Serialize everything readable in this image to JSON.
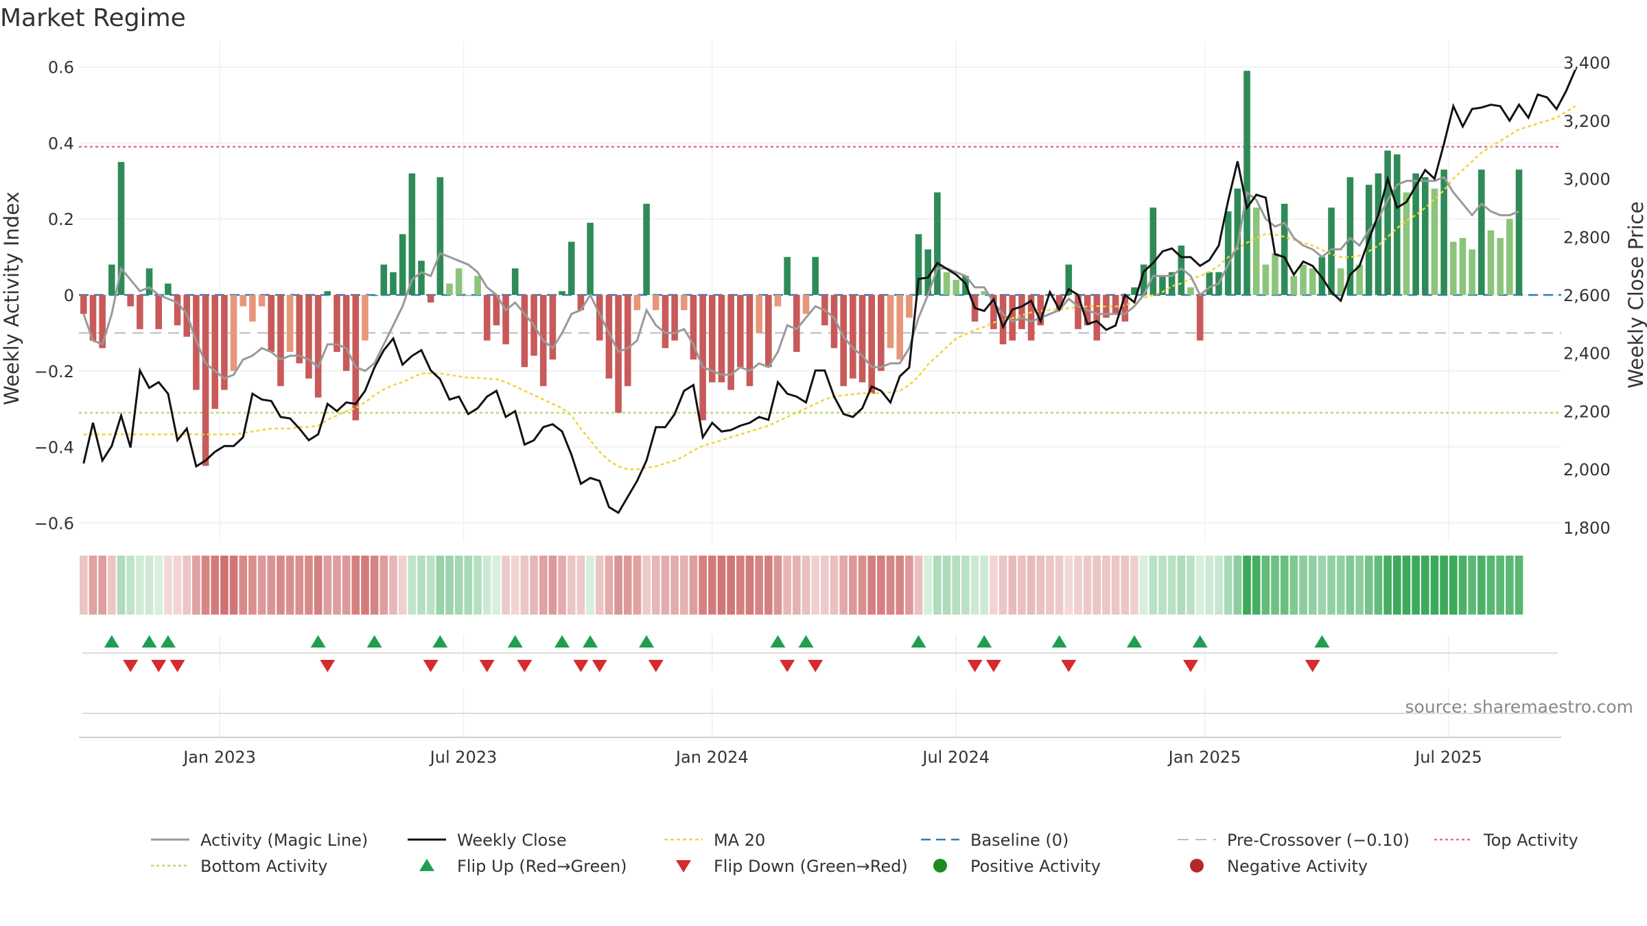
{
  "chart_data": {
    "type": "bar",
    "title": "Market Regime",
    "source": "source: sharemaestro.com",
    "ylabel_left": "Weekly Activity Index",
    "ylabel_right": "Weekly Close Price",
    "ylim_left": [
      -0.65,
      0.65
    ],
    "ylim_right": [
      1750,
      3450
    ],
    "yticks_left": [
      0.6,
      0.4,
      0.2,
      0,
      -0.2,
      -0.4,
      -0.6
    ],
    "ytick_labels_left": [
      "0.6",
      "0.4",
      "0.2",
      "0",
      "−0.2",
      "−0.4",
      "−0.6"
    ],
    "yticks_right": [
      3400,
      3200,
      3000,
      2800,
      2600,
      2400,
      2200,
      2000,
      1800
    ],
    "ytick_labels_right": [
      "3,400",
      "3,200",
      "3,000",
      "2,800",
      "2,600",
      "2,400",
      "2,200",
      "2,000",
      "1,800"
    ],
    "x_range": [
      0,
      158
    ],
    "xticks": [
      14.5,
      40.5,
      67,
      93,
      119.5,
      145.5
    ],
    "xtick_labels": [
      "Jan 2023",
      "Jul 2023",
      "Jan 2024",
      "Jul 2024",
      "Jan 2025",
      "Jul 2025"
    ],
    "activity_values": [
      -0.05,
      -0.12,
      -0.14,
      0.08,
      0.35,
      -0.03,
      -0.09,
      0.07,
      -0.09,
      0.03,
      -0.08,
      -0.11,
      -0.25,
      -0.45,
      -0.3,
      -0.25,
      -0.2,
      -0.03,
      -0.07,
      -0.03,
      -0.15,
      -0.24,
      -0.15,
      -0.18,
      -0.22,
      -0.27,
      0.01,
      -0.15,
      -0.2,
      -0.33,
      -0.12,
      0.0,
      0.08,
      0.06,
      0.16,
      0.32,
      0.09,
      -0.02,
      0.31,
      0.03,
      0.07,
      0.0,
      0.05,
      -0.12,
      -0.08,
      -0.13,
      0.07,
      -0.19,
      -0.16,
      -0.24,
      -0.17,
      0.01,
      0.14,
      -0.04,
      0.19,
      -0.12,
      -0.22,
      -0.31,
      -0.24,
      -0.04,
      0.24,
      -0.04,
      -0.14,
      -0.12,
      -0.04,
      -0.17,
      -0.33,
      -0.23,
      -0.23,
      -0.25,
      -0.19,
      -0.24,
      -0.1,
      -0.19,
      -0.03,
      0.1,
      -0.15,
      -0.05,
      0.1,
      -0.08,
      -0.14,
      -0.24,
      -0.22,
      -0.23,
      -0.26,
      -0.2,
      -0.14,
      -0.17,
      -0.06,
      0.16,
      0.12,
      0.27,
      0.06,
      0.04,
      0.05,
      -0.07,
      0.01,
      -0.09,
      -0.13,
      -0.12,
      -0.09,
      -0.12,
      -0.08,
      0.0,
      -0.04,
      0.08,
      -0.09,
      -0.08,
      -0.12,
      -0.06,
      -0.05,
      -0.07,
      0.02,
      0.08,
      0.23,
      0.05,
      0.06,
      0.13,
      0.02,
      -0.12,
      0.06,
      0.06,
      0.22,
      0.28,
      0.59,
      0.23,
      0.08,
      0.11,
      0.24,
      0.05,
      0.08,
      0.07,
      0.1,
      0.23,
      0.07,
      0.31,
      0.08,
      0.29,
      0.32,
      0.38,
      0.37,
      0.27,
      0.32,
      0.31,
      0.28,
      0.33,
      0.14,
      0.15,
      0.12,
      0.33,
      0.17,
      0.15,
      0.2,
      0.33
    ],
    "activity_magic_line": [
      -0.05,
      -0.12,
      -0.13,
      -0.05,
      0.07,
      0.04,
      0.01,
      0.02,
      0.0,
      -0.01,
      -0.02,
      -0.05,
      -0.12,
      -0.18,
      -0.2,
      -0.22,
      -0.21,
      -0.17,
      -0.16,
      -0.14,
      -0.15,
      -0.17,
      -0.16,
      -0.16,
      -0.17,
      -0.19,
      -0.13,
      -0.13,
      -0.14,
      -0.19,
      -0.2,
      -0.18,
      -0.13,
      -0.08,
      -0.03,
      0.04,
      0.06,
      0.05,
      0.11,
      0.1,
      0.09,
      0.08,
      0.06,
      0.02,
      0.0,
      -0.04,
      -0.02,
      -0.05,
      -0.08,
      -0.12,
      -0.14,
      -0.1,
      -0.05,
      -0.04,
      0.0,
      -0.05,
      -0.1,
      -0.15,
      -0.14,
      -0.12,
      -0.04,
      -0.08,
      -0.1,
      -0.1,
      -0.09,
      -0.13,
      -0.19,
      -0.2,
      -0.21,
      -0.21,
      -0.19,
      -0.2,
      -0.18,
      -0.19,
      -0.15,
      -0.08,
      -0.09,
      -0.06,
      -0.03,
      -0.04,
      -0.06,
      -0.11,
      -0.14,
      -0.16,
      -0.19,
      -0.19,
      -0.18,
      -0.18,
      -0.14,
      -0.06,
      0.0,
      0.07,
      0.07,
      0.06,
      0.05,
      0.02,
      0.02,
      -0.02,
      -0.05,
      -0.07,
      -0.06,
      -0.07,
      -0.06,
      -0.05,
      -0.04,
      -0.01,
      -0.03,
      -0.04,
      -0.05,
      -0.05,
      -0.05,
      -0.05,
      -0.03,
      0.0,
      0.05,
      0.05,
      0.05,
      0.07,
      0.05,
      0.0,
      0.02,
      0.03,
      0.08,
      0.13,
      0.27,
      0.25,
      0.2,
      0.18,
      0.19,
      0.15,
      0.13,
      0.12,
      0.1,
      0.12,
      0.12,
      0.15,
      0.13,
      0.17,
      0.2,
      0.25,
      0.29,
      0.3,
      0.3,
      0.3,
      0.3,
      0.31,
      0.27,
      0.24,
      0.21,
      0.24,
      0.22,
      0.21,
      0.21,
      0.22
    ],
    "weekly_close": [
      2020,
      2160,
      2030,
      2080,
      2185,
      2075,
      2340,
      2280,
      2300,
      2260,
      2100,
      2140,
      2010,
      2030,
      2060,
      2080,
      2080,
      2110,
      2260,
      2240,
      2235,
      2180,
      2175,
      2140,
      2100,
      2120,
      2225,
      2200,
      2230,
      2225,
      2270,
      2350,
      2410,
      2450,
      2360,
      2390,
      2410,
      2340,
      2310,
      2240,
      2250,
      2190,
      2210,
      2250,
      2270,
      2180,
      2200,
      2085,
      2100,
      2145,
      2155,
      2130,
      2050,
      1950,
      1970,
      1960,
      1870,
      1850,
      1905,
      1960,
      2030,
      2145,
      2145,
      2190,
      2270,
      2290,
      2110,
      2160,
      2130,
      2135,
      2150,
      2160,
      2180,
      2170,
      2300,
      2260,
      2250,
      2230,
      2340,
      2340,
      2250,
      2190,
      2180,
      2210,
      2285,
      2270,
      2230,
      2320,
      2350,
      2655,
      2660,
      2710,
      2690,
      2670,
      2640,
      2555,
      2545,
      2585,
      2490,
      2550,
      2560,
      2580,
      2510,
      2610,
      2550,
      2620,
      2600,
      2500,
      2510,
      2480,
      2495,
      2600,
      2575,
      2680,
      2710,
      2750,
      2760,
      2730,
      2730,
      2700,
      2720,
      2770,
      2925,
      3060,
      2900,
      2945,
      2935,
      2740,
      2730,
      2670,
      2715,
      2700,
      2660,
      2610,
      2580,
      2670,
      2700,
      2790,
      2875,
      3000,
      2900,
      2920,
      2975,
      3030,
      3000,
      3120,
      3250,
      3180,
      3240,
      3245,
      3255,
      3250,
      3200,
      3255,
      3210,
      3290,
      3280,
      3240,
      3300,
      3375
    ],
    "ma20": [
      2120,
      2120,
      2120,
      2120,
      2120,
      2120,
      2120,
      2120,
      2120,
      2120,
      2120,
      2120,
      2120,
      2120,
      2120,
      2120,
      2120,
      2125,
      2130,
      2135,
      2140,
      2140,
      2140,
      2145,
      2145,
      2150,
      2170,
      2185,
      2200,
      2210,
      2230,
      2255,
      2275,
      2290,
      2300,
      2315,
      2330,
      2330,
      2330,
      2325,
      2320,
      2315,
      2315,
      2312,
      2310,
      2300,
      2285,
      2270,
      2255,
      2240,
      2225,
      2210,
      2185,
      2140,
      2100,
      2060,
      2030,
      2010,
      2000,
      2000,
      2005,
      2010,
      2020,
      2030,
      2045,
      2065,
      2080,
      2090,
      2100,
      2110,
      2120,
      2130,
      2140,
      2150,
      2165,
      2180,
      2195,
      2210,
      2225,
      2240,
      2250,
      2255,
      2258,
      2262,
      2262,
      2262,
      2265,
      2270,
      2290,
      2320,
      2360,
      2390,
      2420,
      2450,
      2465,
      2480,
      2490,
      2505,
      2515,
      2520,
      2530,
      2540,
      2545,
      2548,
      2550,
      2555,
      2558,
      2560,
      2562,
      2560,
      2560,
      2565,
      2575,
      2590,
      2600,
      2610,
      2630,
      2640,
      2655,
      2665,
      2680,
      2700,
      2730,
      2760,
      2780,
      2795,
      2810,
      2808,
      2800,
      2790,
      2780,
      2770,
      2755,
      2740,
      2730,
      2730,
      2735,
      2750,
      2770,
      2800,
      2830,
      2855,
      2875,
      2900,
      2930,
      2960,
      3000,
      3030,
      3060,
      3090,
      3110,
      3130,
      3150,
      3170,
      3180,
      3190,
      3200,
      3210,
      3230,
      3250
    ],
    "crossover_bands": {
      "baseline": 0,
      "pre_crossover": -0.1,
      "top_activity": 0.39,
      "bottom_activity": -0.31
    },
    "flip_up_weeks": [
      3,
      7,
      9,
      25,
      31,
      38,
      46,
      51,
      54,
      60,
      74,
      77,
      89,
      96,
      104,
      112,
      119,
      132
    ],
    "flip_down_weeks": [
      5,
      8,
      10,
      26,
      37,
      43,
      47,
      53,
      55,
      61,
      75,
      78,
      95,
      97,
      105,
      118,
      131
    ],
    "series": [
      {
        "name": "Activity (Magic Line)",
        "color": "#999999"
      },
      {
        "name": "Weekly Close",
        "color": "#111111"
      },
      {
        "name": "MA 20",
        "color": "#f2d338"
      },
      {
        "name": "Baseline (0)",
        "color": "#2b7bbb"
      },
      {
        "name": "Pre-Crossover (−0.10)",
        "color": "#bbbbbb"
      },
      {
        "name": "Top Activity",
        "color": "#e66f8a"
      },
      {
        "name": "Bottom Activity",
        "color": "#b3dd6a"
      },
      {
        "name": "Flip Up (Red→Green)",
        "color": "#1f9e50"
      },
      {
        "name": "Flip Down (Green→Red)",
        "color": "#d62b2b"
      },
      {
        "name": "Positive Activity",
        "color": "#1e8a1e"
      },
      {
        "name": "Negative Activity",
        "color": "#b42828"
      }
    ]
  }
}
